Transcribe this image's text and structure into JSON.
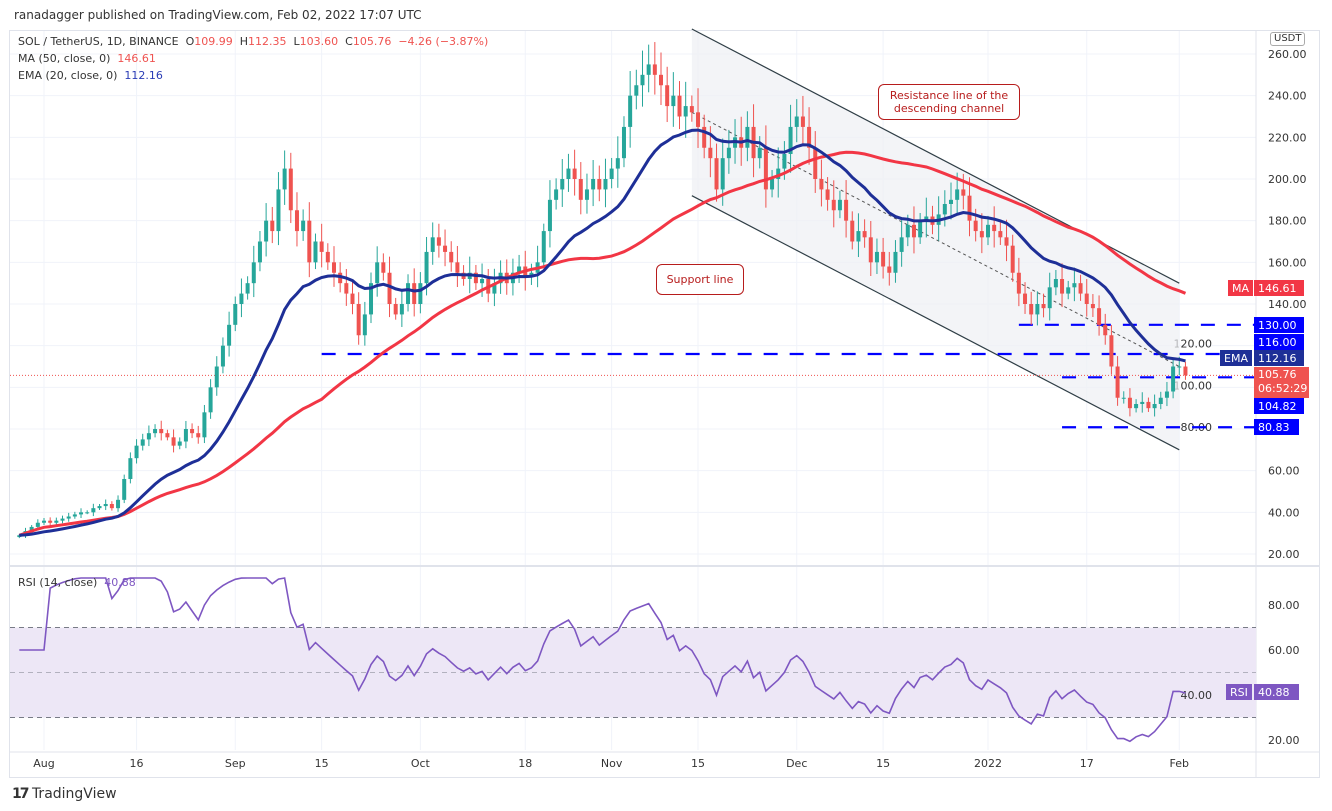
{
  "publish_line": "ranadagger published on TradingView.com, Feb 02, 2022 17:07 UTC",
  "legend": {
    "symbol": "SOL / TetherUS, 1D, BINANCE",
    "o_label": "O",
    "o": "109.99",
    "h_label": "H",
    "h": "112.35",
    "l_label": "L",
    "l": "103.60",
    "c_label": "C",
    "c": "105.76",
    "change": "−4.26 (−3.87%)",
    "ma_label": "MA (50, close, 0)",
    "ma_value": "146.61",
    "ema_label": "EMA (20, close, 0)",
    "ema_value": "112.16",
    "rsi_label": "RSI (14, close)",
    "rsi_value": "40.88"
  },
  "currency": "USDT",
  "tags": {
    "ma_name": "MA",
    "ma": "146.61",
    "ema_name": "EMA",
    "ema": "112.16",
    "price": "105.76",
    "countdown": "06:52:29",
    "l130": "130.00",
    "l116": "116.00",
    "l104": "104.82",
    "l80": "80.83",
    "rsi_name": "RSI",
    "rsi": "40.88"
  },
  "annotations": {
    "resistance": "Resistance line of the descending channel",
    "support": "Support line"
  },
  "branding": "TradingView",
  "colors": {
    "up": "#26a69a",
    "down": "#ef5350",
    "ma": "#f23645",
    "ema": "#1e2f97",
    "levels": "#0000ff",
    "rsi": "#7e57c2",
    "rsi_band": "#ede7f6"
  },
  "chart_data": {
    "type": "candlestick",
    "price_axis": {
      "ticks": [
        20,
        40,
        60,
        80,
        100,
        120,
        140,
        160,
        180,
        200,
        220,
        240,
        260
      ],
      "range": [
        20,
        260
      ]
    },
    "rsi_axis": {
      "ticks": [
        20,
        40,
        60,
        80
      ],
      "bands": [
        30,
        50,
        70
      ]
    },
    "x_ticks": [
      {
        "label": "Aug",
        "date": "2021-08-01"
      },
      {
        "label": "16",
        "date": "2021-08-16"
      },
      {
        "label": "Sep",
        "date": "2021-09-01"
      },
      {
        "label": "15",
        "date": "2021-09-15"
      },
      {
        "label": "Oct",
        "date": "2021-10-01"
      },
      {
        "label": "18",
        "date": "2021-10-18"
      },
      {
        "label": "Nov",
        "date": "2021-11-01"
      },
      {
        "label": "15",
        "date": "2021-11-15"
      },
      {
        "label": "Dec",
        "date": "2021-12-01"
      },
      {
        "label": "15",
        "date": "2021-12-15"
      },
      {
        "label": "2022",
        "date": "2022-01-01"
      },
      {
        "label": "17",
        "date": "2022-01-17"
      },
      {
        "label": "Feb",
        "date": "2022-02-01"
      }
    ],
    "start_date": "2021-07-28",
    "closes": [
      29,
      31,
      33,
      35,
      36,
      35,
      36,
      37,
      38,
      39,
      40,
      40,
      42,
      43,
      44,
      42,
      46,
      56,
      66,
      72,
      75,
      78,
      80,
      78,
      76,
      72,
      74,
      80,
      78,
      76,
      88,
      100,
      110,
      120,
      130,
      140,
      145,
      150,
      160,
      170,
      180,
      175,
      195,
      205,
      185,
      175,
      180,
      160,
      170,
      165,
      160,
      155,
      150,
      145,
      140,
      125,
      135,
      150,
      160,
      155,
      140,
      135,
      140,
      150,
      140,
      150,
      165,
      172,
      168,
      165,
      160,
      155,
      152,
      155,
      150,
      152,
      145,
      150,
      155,
      150,
      155,
      158,
      153,
      155,
      160,
      175,
      190,
      195,
      200,
      205,
      200,
      190,
      195,
      200,
      195,
      200,
      205,
      210,
      225,
      240,
      245,
      250,
      255,
      250,
      245,
      235,
      240,
      230,
      235,
      232,
      225,
      215,
      210,
      195,
      210,
      215,
      220,
      215,
      225,
      210,
      215,
      195,
      200,
      205,
      212,
      225,
      230,
      225,
      215,
      200,
      195,
      190,
      185,
      190,
      180,
      170,
      175,
      172,
      160,
      165,
      158,
      155,
      165,
      172,
      178,
      172,
      180,
      182,
      178,
      183,
      188,
      190,
      195,
      192,
      180,
      175,
      172,
      178,
      175,
      172,
      168,
      155,
      145,
      140,
      135,
      140,
      138,
      148,
      152,
      145,
      148,
      150,
      145,
      140,
      138,
      130,
      125,
      110,
      95,
      95,
      90,
      92,
      93,
      90,
      92,
      95,
      98,
      110,
      110,
      105.76
    ],
    "last_candle": {
      "open": 109.99,
      "high": 112.35,
      "low": 103.6,
      "close": 105.76
    },
    "indicators": {
      "ma50_last": 146.61,
      "ema20_last": 112.16,
      "rsi14_last": 40.88
    },
    "channel": {
      "upper": [
        {
          "date": "2021-11-14",
          "price": 272
        },
        {
          "date": "2022-02-01",
          "price": 150
        }
      ],
      "lower": [
        {
          "date": "2021-11-14",
          "price": 192
        },
        {
          "date": "2022-02-01",
          "price": 70
        }
      ],
      "middle": [
        {
          "date": "2021-11-14",
          "price": 232
        },
        {
          "date": "2022-02-01",
          "price": 110
        }
      ]
    },
    "levels": [
      {
        "price": 130.0,
        "from": "2022-01-06"
      },
      {
        "price": 116.0,
        "from": "2021-09-15"
      },
      {
        "price": 104.82,
        "from": "2022-01-13"
      },
      {
        "price": 80.83,
        "from": "2022-01-13"
      }
    ]
  }
}
